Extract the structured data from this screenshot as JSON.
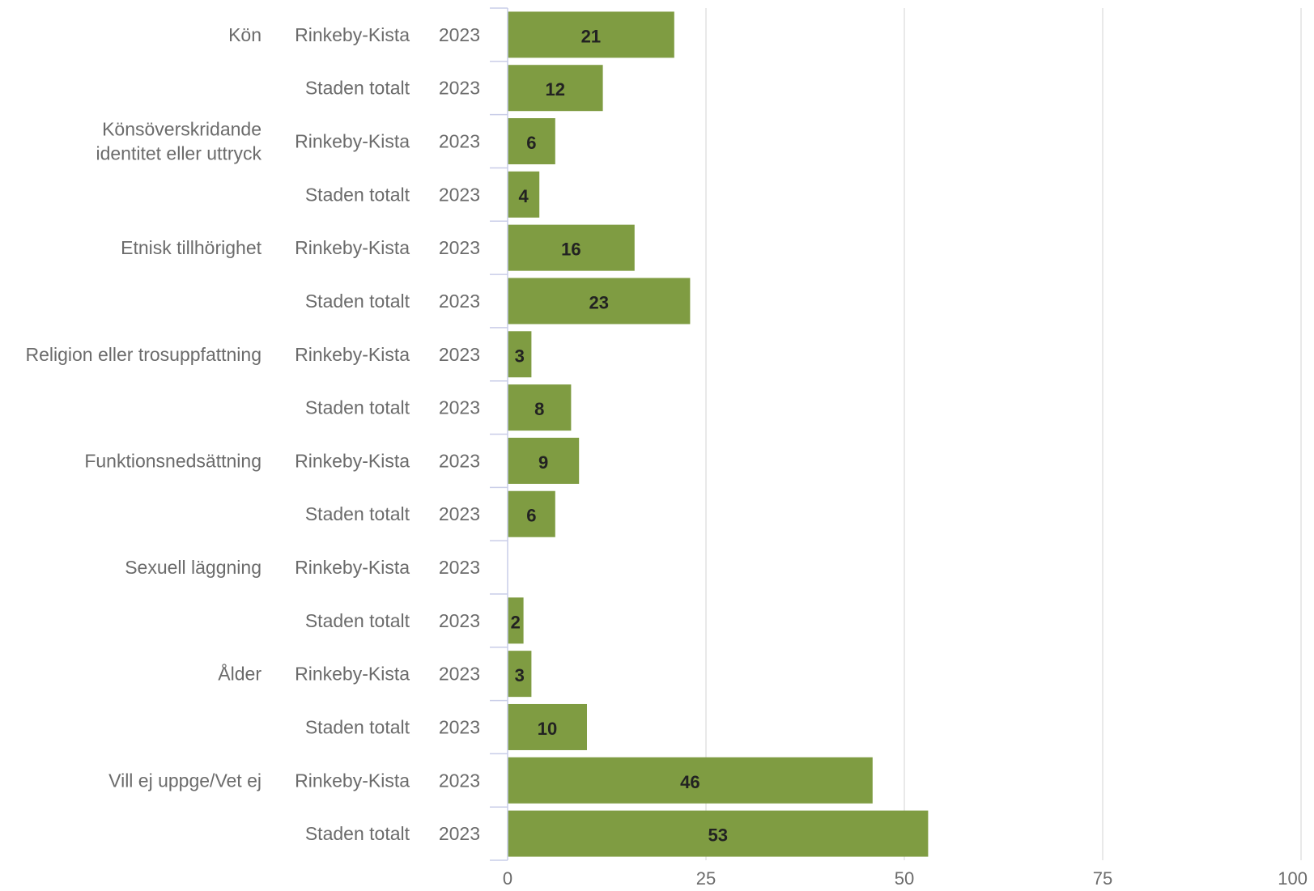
{
  "colors": {
    "bar": "#7f9c42",
    "grid": "#e2e2e2",
    "axis": "#c9cde8",
    "label": "#6b6b6b",
    "value": "#222222"
  },
  "chart_data": {
    "type": "bar",
    "orientation": "horizontal",
    "title": "",
    "xlabel": "",
    "ylabel": "",
    "xlim": [
      0,
      100
    ],
    "x_ticks": [
      0,
      25,
      50,
      75,
      100
    ],
    "grid": true,
    "legend": "none",
    "groups": [
      {
        "label_lines": [
          "Kön"
        ],
        "rows": [
          {
            "area": "Rinkeby-Kista",
            "year": "2023",
            "value": 21
          },
          {
            "area": "Staden totalt",
            "year": "2023",
            "value": 12
          }
        ]
      },
      {
        "label_lines": [
          "Könsöverskridande",
          "identitet eller uttryck"
        ],
        "rows": [
          {
            "area": "Rinkeby-Kista",
            "year": "2023",
            "value": 6
          },
          {
            "area": "Staden totalt",
            "year": "2023",
            "value": 4
          }
        ]
      },
      {
        "label_lines": [
          "Etnisk tillhörighet"
        ],
        "rows": [
          {
            "area": "Rinkeby-Kista",
            "year": "2023",
            "value": 16
          },
          {
            "area": "Staden totalt",
            "year": "2023",
            "value": 23
          }
        ]
      },
      {
        "label_lines": [
          "Religion eller trosuppfattning"
        ],
        "rows": [
          {
            "area": "Rinkeby-Kista",
            "year": "2023",
            "value": 3
          },
          {
            "area": "Staden totalt",
            "year": "2023",
            "value": 8
          }
        ]
      },
      {
        "label_lines": [
          "Funktionsnedsättning"
        ],
        "rows": [
          {
            "area": "Rinkeby-Kista",
            "year": "2023",
            "value": 9
          },
          {
            "area": "Staden totalt",
            "year": "2023",
            "value": 6
          }
        ]
      },
      {
        "label_lines": [
          "Sexuell läggning"
        ],
        "rows": [
          {
            "area": "Rinkeby-Kista",
            "year": "2023",
            "value": null
          },
          {
            "area": "Staden totalt",
            "year": "2023",
            "value": 2
          }
        ]
      },
      {
        "label_lines": [
          "Ålder"
        ],
        "rows": [
          {
            "area": "Rinkeby-Kista",
            "year": "2023",
            "value": 3
          },
          {
            "area": "Staden totalt",
            "year": "2023",
            "value": 10
          }
        ]
      },
      {
        "label_lines": [
          "Vill ej uppge/Vet ej"
        ],
        "rows": [
          {
            "area": "Rinkeby-Kista",
            "year": "2023",
            "value": 46
          },
          {
            "area": "Staden totalt",
            "year": "2023",
            "value": 53
          }
        ]
      }
    ]
  }
}
